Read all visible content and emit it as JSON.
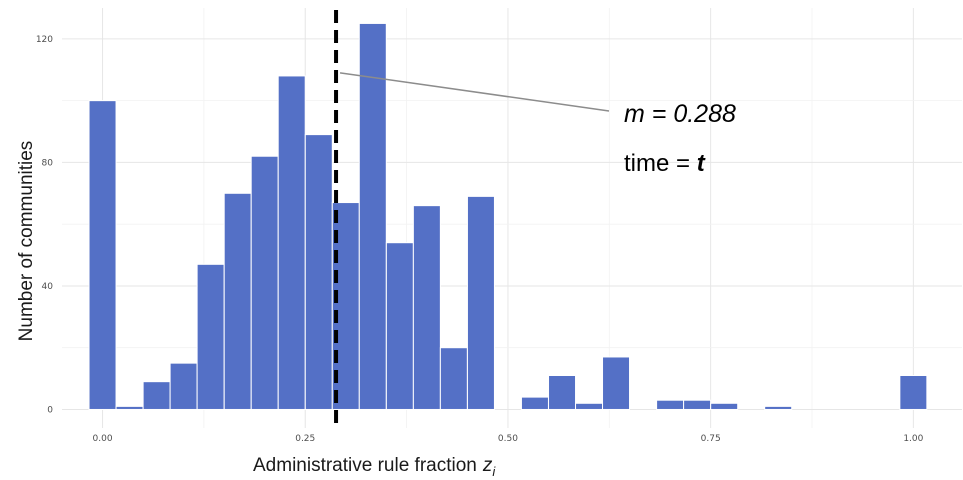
{
  "chart_data": {
    "type": "bar",
    "subtype": "histogram",
    "xlabel": "Administrative rule fraction",
    "xlabel_symbol": "z",
    "xlabel_subscript": "i",
    "ylabel": "Number of communities",
    "xlim": [
      -0.05,
      1.06
    ],
    "ylim": [
      -6,
      130
    ],
    "x_ticks": [
      "0.00",
      "0.25",
      "0.50",
      "0.75",
      "1.00"
    ],
    "x_tick_values": [
      0,
      0.25,
      0.5,
      0.75,
      1.0
    ],
    "y_ticks": [
      "0",
      "40",
      "80",
      "120"
    ],
    "y_tick_values": [
      0,
      40,
      80,
      120
    ],
    "grid": true,
    "bar_color": "#5470c6",
    "bin_width": 0.0333,
    "bins": [
      {
        "x": 0.0,
        "count": 100
      },
      {
        "x": 0.0333,
        "count": 1
      },
      {
        "x": 0.0667,
        "count": 9
      },
      {
        "x": 0.1,
        "count": 15
      },
      {
        "x": 0.1333,
        "count": 47
      },
      {
        "x": 0.1667,
        "count": 70
      },
      {
        "x": 0.2,
        "count": 82
      },
      {
        "x": 0.2333,
        "count": 108
      },
      {
        "x": 0.2667,
        "count": 89
      },
      {
        "x": 0.3,
        "count": 67
      },
      {
        "x": 0.3333,
        "count": 125
      },
      {
        "x": 0.3667,
        "count": 54
      },
      {
        "x": 0.4,
        "count": 66
      },
      {
        "x": 0.4333,
        "count": 20
      },
      {
        "x": 0.4667,
        "count": 69
      },
      {
        "x": 0.5,
        "count": 0
      },
      {
        "x": 0.5333,
        "count": 4
      },
      {
        "x": 0.5667,
        "count": 11
      },
      {
        "x": 0.6,
        "count": 2
      },
      {
        "x": 0.6333,
        "count": 17
      },
      {
        "x": 0.6667,
        "count": 0
      },
      {
        "x": 0.7,
        "count": 3
      },
      {
        "x": 0.7333,
        "count": 3
      },
      {
        "x": 0.7667,
        "count": 2
      },
      {
        "x": 0.8,
        "count": 0
      },
      {
        "x": 0.8333,
        "count": 1
      },
      {
        "x": 0.8667,
        "count": 0
      },
      {
        "x": 0.9,
        "count": 0
      },
      {
        "x": 0.9333,
        "count": 0
      },
      {
        "x": 0.9667,
        "count": 0
      },
      {
        "x": 1.0,
        "count": 11
      }
    ],
    "mean_line": {
      "x": 0.288,
      "style": "dashed",
      "color": "#000000"
    },
    "annotation": {
      "mean_label": "m = 0.288",
      "time_prefix": "time = ",
      "time_var": "t",
      "pointer_y": 109
    }
  }
}
